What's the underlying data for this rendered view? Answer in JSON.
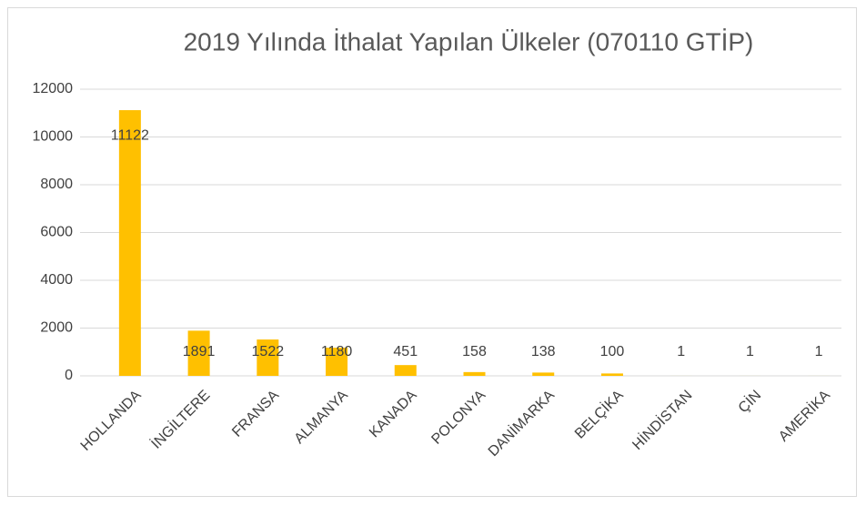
{
  "chart_data": {
    "type": "bar",
    "title": "2019 Yılında İthalat Yapılan Ülkeler (070110 GTİP)",
    "categories": [
      "HOLLANDA",
      "İNGİLTERE",
      "FRANSA",
      "ALMANYA",
      "KANADA",
      "POLONYA",
      "DANİMARKA",
      "BELÇİKA",
      "HİNDİSTAN",
      "ÇİN",
      "AMERİKA"
    ],
    "values": [
      11122,
      1891,
      1522,
      1180,
      451,
      158,
      138,
      100,
      1,
      1,
      1
    ],
    "color": "#ffc000",
    "ylim": [
      0,
      12000
    ],
    "yticks": [
      0,
      2000,
      4000,
      6000,
      8000,
      10000,
      12000
    ],
    "grid": true
  }
}
